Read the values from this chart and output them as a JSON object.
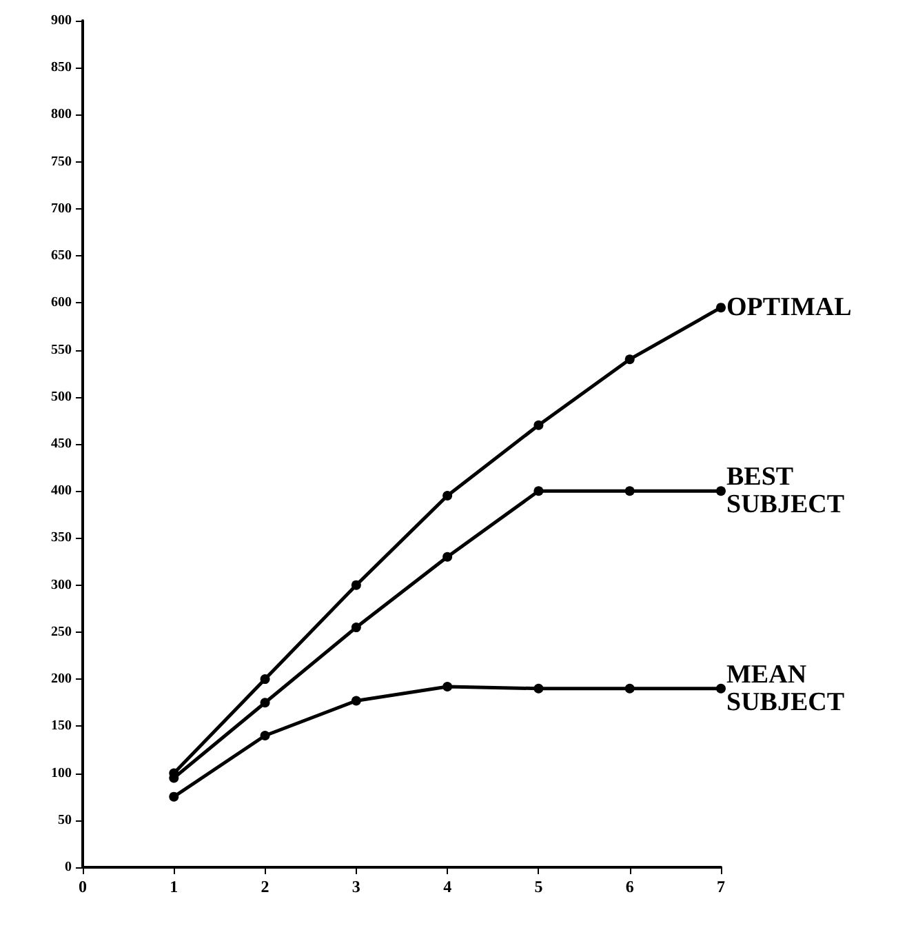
{
  "chart_data": {
    "type": "line",
    "x": [
      1,
      2,
      3,
      4,
      5,
      6,
      7
    ],
    "xlim": [
      0,
      7
    ],
    "xticks": [
      0,
      1,
      2,
      3,
      4,
      5,
      6,
      7
    ],
    "ylim": [
      0,
      900
    ],
    "yticks": [
      0,
      50,
      100,
      150,
      200,
      250,
      300,
      350,
      400,
      450,
      500,
      550,
      600,
      650,
      700,
      750,
      800,
      850,
      900
    ],
    "grid": false,
    "legend": false,
    "marker": "circle",
    "line_style": "solid",
    "series": [
      {
        "name": "OPTIMAL",
        "color": "#000000",
        "values": [
          100,
          200,
          300,
          395,
          470,
          540,
          595
        ]
      },
      {
        "name": "BEST SUBJECT",
        "color": "#000000",
        "values": [
          95,
          175,
          255,
          330,
          400,
          400,
          400
        ]
      },
      {
        "name": "MEAN SUBJECT",
        "color": "#000000",
        "values": [
          75,
          140,
          177,
          192,
          190,
          190,
          190
        ]
      }
    ]
  }
}
